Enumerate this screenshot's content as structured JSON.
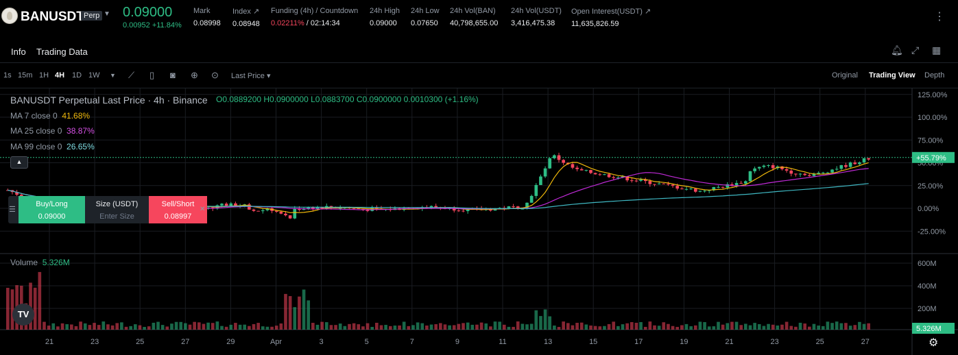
{
  "header": {
    "symbol": "BANUSDT",
    "badge": "Perp",
    "last_price": "0.09000",
    "change": "0.00952 +11.84%",
    "stats": [
      {
        "label": "Mark",
        "value": "0.08998"
      },
      {
        "label": "Index ↗",
        "value": "0.08948"
      },
      {
        "label": "Funding (4h) / Countdown",
        "value_red": "0.02211%",
        "value": " / 02:14:34"
      },
      {
        "label": "24h High",
        "value": "0.09000"
      },
      {
        "label": "24h Low",
        "value": "0.07650"
      },
      {
        "label": "24h Vol(BAN)",
        "value": "40,798,655.00"
      },
      {
        "label": "24h Vol(USDT)",
        "value": "3,416,475.38"
      },
      {
        "label": "Open Interest(USDT) ↗",
        "value": "11,635,826.59"
      }
    ],
    "more": "⋮"
  },
  "tabs": {
    "info": "Info",
    "trading_data": "Trading Data"
  },
  "toolbar": {
    "timeframes": [
      "1s",
      "15m",
      "1H",
      "4H",
      "1D",
      "1W"
    ],
    "active_timeframe": "4H",
    "price_type": "Last Price",
    "views": [
      "Original",
      "Trading View",
      "Depth"
    ],
    "active_view": "Trading View"
  },
  "chart": {
    "legend_title": "BANUSDT Perpetual Last Price · 4h · Binance",
    "ohlc": "O0.0889200 H0.0900000 L0.0883700 C0.0900000 0.0010300 (+1.16%)",
    "ma7_label": "MA 7 close 0",
    "ma7_value": "41.68%",
    "ma25_label": "MA 25 close 0",
    "ma25_value": "38.87%",
    "ma99_label": "MA 99 close 0",
    "ma99_value": "26.65%",
    "volume_label": "Volume",
    "volume_value": "5.326M",
    "price_axis": [
      "125.00%",
      "100.00%",
      "75.00%",
      "50.00%",
      "25.00%",
      "0.00%",
      "-25.00%"
    ],
    "current_tag": "+55.79%",
    "volume_axis": [
      "600M",
      "400M",
      "200M"
    ],
    "volume_tag": "5.326M",
    "date_axis": [
      "21",
      "23",
      "25",
      "27",
      "29",
      "Apr",
      "3",
      "5",
      "7",
      "9",
      "11",
      "13",
      "15",
      "17",
      "19",
      "21",
      "23",
      "25",
      "27"
    ]
  },
  "order": {
    "buy_label": "Buy/Long",
    "buy_price": "0.09000",
    "size_label": "Size (USDT)",
    "size_placeholder": "Enter Size",
    "sell_label": "Sell/Short",
    "sell_price": "0.08997"
  },
  "colors": {
    "up": "#2ebd85",
    "down": "#f6465d",
    "ma7": "#f0b90b",
    "ma25": "#c02ad8",
    "ma99": "#3fb8c3"
  },
  "chart_data": {
    "type": "candlestick",
    "series": [
      {
        "name": "MA 7 close 0",
        "last": "41.68%"
      },
      {
        "name": "MA 25 close 0",
        "last": "38.87%"
      },
      {
        "name": "MA 99 close 0",
        "last": "26.65%"
      }
    ],
    "yticks": [
      "125.00%",
      "100.00%",
      "75.00%",
      "50.00%",
      "25.00%",
      "0.00%",
      "-25.00%"
    ],
    "xticks": [
      "21",
      "23",
      "25",
      "27",
      "29",
      "Apr",
      "3",
      "5",
      "7",
      "9",
      "11",
      "13",
      "15",
      "17",
      "19",
      "21",
      "23",
      "25",
      "27"
    ]
  }
}
